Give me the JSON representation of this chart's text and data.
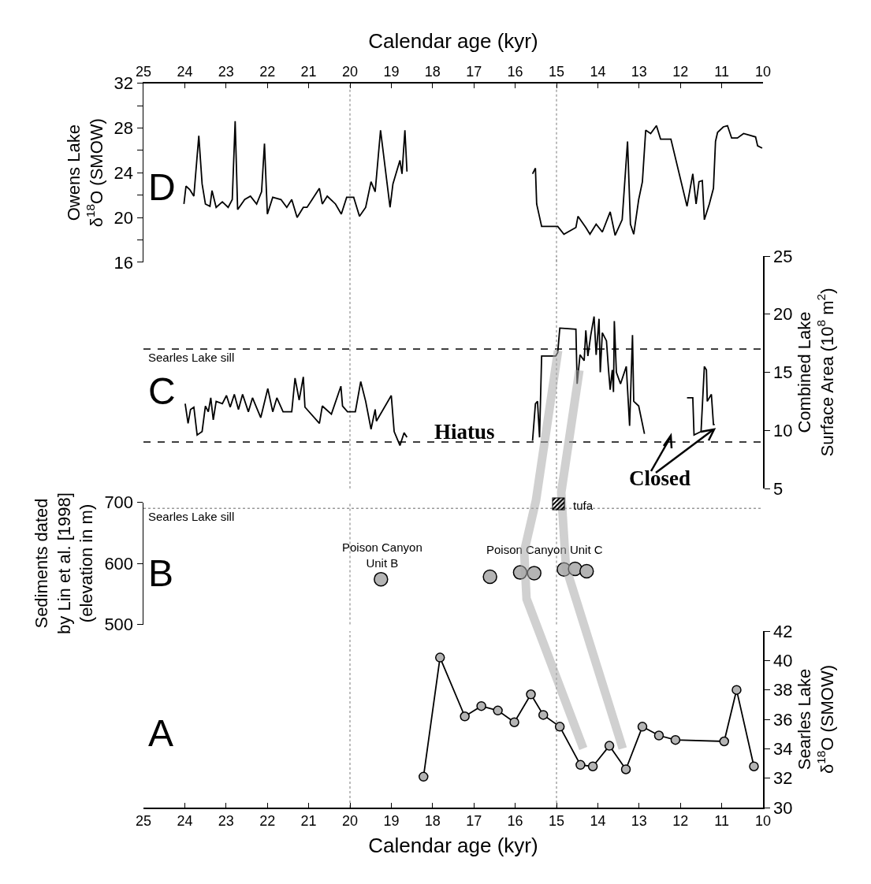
{
  "chart_data": [
    {
      "type": "line",
      "xlabel": "Calendar age (kyr)",
      "ylabel": "Owens Lake\nδ$^{18}$O (SMOW)",
      "xlim": [
        25,
        10
      ],
      "xticks": [
        25,
        24,
        23,
        22,
        21,
        20,
        19,
        18,
        17,
        16,
        15,
        14,
        13,
        12,
        11,
        10
      ],
      "ylim": [
        16,
        32
      ],
      "yticks": [
        16,
        {
          "value": 18,
          "label": null
        },
        20,
        {
          "value": 22,
          "label": null
        },
        24,
        {
          "value": 26,
          "label": null
        },
        28,
        {
          "value": 30,
          "label": null
        },
        32
      ],
      "annotations": [
        "D"
      ],
      "ref_lines": [
        {
          "axis": "x",
          "value": 20,
          "line_style": "dotted",
          "color": "#999999"
        },
        {
          "axis": "x",
          "value": 15,
          "line_style": "dotted",
          "color": "#999999"
        }
      ],
      "series": [
        {
          "color": "#000000",
          "x": [
            24.02,
            23.97,
            23.88,
            23.78,
            23.66,
            23.58,
            23.5,
            23.39,
            23.34,
            23.24,
            23.09,
            22.95,
            22.85,
            22.78,
            22.72,
            22.55,
            22.41,
            22.26,
            22.14,
            22.07,
            22.0,
            21.87,
            21.67,
            21.53,
            21.41,
            21.28,
            21.13,
            21.04,
            20.74,
            20.67,
            20.55,
            20.35,
            20.21,
            20.08,
            19.91,
            19.77,
            19.62,
            19.49,
            19.39,
            19.26,
            19.03,
            18.96,
            18.79,
            18.74,
            18.67,
            18.62,
            17.0,
            15.58,
            15.51,
            15.48,
            15.36,
            14.97,
            14.82,
            14.53,
            14.48,
            14.29,
            14.19,
            14.04,
            13.89,
            13.7,
            13.58,
            13.41,
            13.28,
            13.21,
            13.13,
            13.01,
            12.92,
            12.84,
            12.72,
            12.58,
            12.48,
            12.23,
            11.84,
            11.7,
            11.62,
            11.55,
            11.47,
            11.42,
            11.3,
            11.2,
            11.15,
            11.1,
            10.96,
            10.86,
            10.76,
            10.62,
            10.47,
            10.18,
            10.13,
            10.02
          ],
          "values": [
            21.2,
            22.8,
            22.5,
            21.9,
            27.3,
            23.0,
            21.2,
            21.0,
            22.4,
            20.9,
            21.4,
            20.9,
            21.6,
            28.6,
            20.7,
            21.6,
            21.9,
            21.2,
            22.3,
            26.6,
            20.3,
            21.8,
            21.6,
            20.9,
            21.6,
            20.0,
            20.9,
            20.9,
            22.6,
            21.2,
            21.9,
            21.2,
            20.3,
            21.8,
            21.8,
            20.1,
            20.9,
            23.2,
            22.3,
            27.8,
            20.9,
            23.0,
            25.1,
            23.9,
            27.8,
            24.1,
            null,
            23.9,
            24.4,
            21.2,
            19.2,
            19.2,
            18.5,
            19.1,
            20.1,
            19.1,
            18.5,
            19.4,
            18.7,
            20.5,
            18.4,
            19.8,
            26.8,
            19.4,
            18.5,
            21.6,
            23.2,
            27.8,
            27.5,
            28.2,
            27.0,
            27.0,
            21.0,
            23.9,
            21.2,
            23.2,
            23.3,
            19.8,
            21.2,
            22.6,
            26.8,
            27.6,
            28.1,
            28.2,
            27.1,
            27.1,
            27.5,
            27.2,
            26.4,
            26.2
          ]
        }
      ]
    },
    {
      "type": "line",
      "ylabel": "Combined Lake\nSurface Area (10$^{8}$ m$^{2}$)",
      "xlim": [
        25,
        10
      ],
      "ylim": [
        5,
        25
      ],
      "yticks": [
        5,
        10,
        15,
        20,
        25
      ],
      "tick_labels": "y",
      "annotations": [
        "C",
        "Hiatus",
        "Closed"
      ],
      "ref_lines": [
        {
          "axis": "y",
          "value": 17,
          "label": "Searles Lake sill",
          "line_style": "dashed",
          "color": "#000000"
        },
        {
          "axis": "y",
          "value": 9,
          "line_style": "dashed",
          "color": "#000000"
        },
        {
          "axis": "x",
          "value": 20,
          "line_style": "dotted",
          "color": "#999999"
        },
        {
          "axis": "x",
          "value": 15,
          "line_style": "dotted",
          "color": "#999999"
        }
      ],
      "series": [
        {
          "color": "#000000",
          "x": [
            23.99,
            23.92,
            23.86,
            23.78,
            23.7,
            23.58,
            23.5,
            23.43,
            23.37,
            23.31,
            23.24,
            23.09,
            22.99,
            22.9,
            22.8,
            22.7,
            22.6,
            22.46,
            22.36,
            22.16,
            21.99,
            21.87,
            21.77,
            21.62,
            21.41,
            21.33,
            21.23,
            21.13,
            21.09,
            20.74,
            20.67,
            20.45,
            20.22,
            20.18,
            20.06,
            19.87,
            19.74,
            19.62,
            19.49,
            19.39,
            19.36,
            19.0,
            18.93,
            18.79,
            18.69,
            18.62,
            17.0,
            15.58,
            15.51,
            15.46,
            15.41,
            15.36,
            15.02,
            14.97,
            14.92,
            14.53,
            14.5,
            14.43,
            14.33,
            14.29,
            14.24,
            14.17,
            14.09,
            14.04,
            13.97,
            13.94,
            13.89,
            13.79,
            13.74,
            13.7,
            13.65,
            13.62,
            13.6,
            13.55,
            13.45,
            13.31,
            13.23,
            13.16,
            13.13,
            13.01,
            12.87,
            12.5,
            11.84,
            11.7,
            11.67,
            11.5,
            11.42,
            11.37,
            11.35,
            11.25,
            11.2,
            11.17
          ],
          "values": [
            12.3,
            10.6,
            11.8,
            12.0,
            9.6,
            9.9,
            12.1,
            11.6,
            12.8,
            10.9,
            12.5,
            12.3,
            13.0,
            12.0,
            13.1,
            11.8,
            13.1,
            11.6,
            12.8,
            11.1,
            13.6,
            11.6,
            12.8,
            11.6,
            11.6,
            14.5,
            12.6,
            14.6,
            12.0,
            10.6,
            12.1,
            11.4,
            13.8,
            12.1,
            11.6,
            11.6,
            14.2,
            12.5,
            10.1,
            11.8,
            10.8,
            13.0,
            9.9,
            8.7,
            9.8,
            9.4,
            null,
            9.1,
            12.3,
            12.5,
            9.4,
            16.4,
            16.4,
            16.7,
            18.8,
            18.7,
            14.0,
            16.5,
            16.0,
            18.6,
            16.4,
            18.2,
            19.8,
            16.5,
            19.6,
            15.0,
            18.4,
            17.7,
            15.2,
            13.5,
            15.2,
            13.3,
            19.4,
            15.0,
            14.0,
            15.5,
            10.4,
            18.2,
            12.5,
            12.1,
            9.7,
            null,
            12.8,
            12.8,
            9.6,
            9.9,
            15.5,
            15.2,
            12.5,
            13.1,
            10.5,
            10.5
          ]
        }
      ]
    },
    {
      "type": "scatter",
      "marker": "circle",
      "ylabel": "Sediments dated\nby Lin et al. [1998]\n(elevation in m)",
      "xlim": [
        25,
        10
      ],
      "ylim": [
        500,
        700
      ],
      "yticks": [
        500,
        600,
        700
      ],
      "tick_labels": "y",
      "annotations": [
        "B",
        "Poison Canyon\nUnit B",
        "Poison Canyon Unit C",
        "tufa"
      ],
      "ref_lines": [
        {
          "axis": "y",
          "value": 690,
          "label": "Searles Lake sill",
          "line_style": "dotted",
          "color": "#999999"
        },
        {
          "axis": "x",
          "value": 20,
          "line_style": "dotted",
          "color": "#999999"
        },
        {
          "axis": "x",
          "value": 15,
          "line_style": "dotted",
          "color": "#999999"
        }
      ],
      "series": [
        {
          "color": "#000000",
          "x": [
            19.25,
            16.61,
            15.88,
            15.54,
            14.82,
            14.55,
            14.27
          ],
          "values": [
            574,
            578,
            585,
            584,
            590,
            591,
            587
          ]
        }
      ]
    },
    {
      "type": "line",
      "marker": "circle",
      "xlabel": "Calendar age (kyr)",
      "ylabel": "Searles Lake\nδ$^{18}$O (SMOW)",
      "xlim": [
        25,
        10
      ],
      "xticks": [
        25,
        24,
        23,
        22,
        21,
        20,
        19,
        18,
        17,
        16,
        15,
        14,
        13,
        12,
        11,
        10
      ],
      "ylim": [
        30,
        42
      ],
      "yticks": [
        30,
        32,
        34,
        36,
        38,
        40,
        42
      ],
      "annotations": [
        "A"
      ],
      "ref_lines": [
        {
          "axis": "x",
          "value": 20,
          "line_style": "dotted",
          "color": "#999999"
        },
        {
          "axis": "x",
          "value": 15,
          "line_style": "dotted",
          "color": "#999999"
        }
      ],
      "series": [
        {
          "color": "#000000",
          "x": [
            18.22,
            17.82,
            17.22,
            16.82,
            16.42,
            16.02,
            15.62,
            15.32,
            14.92,
            14.42,
            14.12,
            13.72,
            13.32,
            12.92,
            12.52,
            12.12,
            10.94,
            10.64,
            10.22
          ],
          "values": [
            32.1,
            40.2,
            36.2,
            36.9,
            36.6,
            35.8,
            37.7,
            36.3,
            35.5,
            32.9,
            32.8,
            34.2,
            32.6,
            35.5,
            34.9,
            34.6,
            34.5,
            38.0,
            32.8
          ]
        }
      ]
    }
  ]
}
